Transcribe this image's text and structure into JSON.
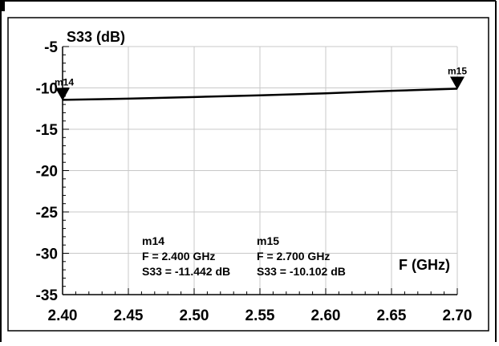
{
  "chart_data": {
    "type": "line",
    "title": "S33 (dB)",
    "ylabel": "S33 (dB)",
    "xlabel": "F (GHz)",
    "xlim": [
      2.4,
      2.7
    ],
    "ylim": [
      -35,
      -5
    ],
    "x_ticks": [
      "2.40",
      "2.45",
      "2.50",
      "2.55",
      "2.60",
      "2.65",
      "2.70"
    ],
    "y_ticks": [
      "-5",
      "-10",
      "-15",
      "-20",
      "-25",
      "-30",
      "-35"
    ],
    "grid": true,
    "series": [
      {
        "x": [
          2.4,
          2.45,
          2.5,
          2.55,
          2.6,
          2.65,
          2.7
        ],
        "y": [
          -11.442,
          -11.3,
          -11.1,
          -10.9,
          -10.65,
          -10.35,
          -10.102
        ],
        "color": "#000000"
      }
    ],
    "markers": [
      {
        "name": "m14",
        "x": 2.4,
        "y": -11.442,
        "lines": [
          "m14",
          "F = 2.400 GHz",
          "S33 = -11.442 dB"
        ]
      },
      {
        "name": "m15",
        "x": 2.7,
        "y": -10.102,
        "lines": [
          "m15",
          "F = 2.700 GHz",
          "S33 = -10.102 dB"
        ]
      }
    ],
    "colors": {
      "line": "#000000",
      "grid": "#c8c8c8",
      "axis": "#000000"
    }
  }
}
